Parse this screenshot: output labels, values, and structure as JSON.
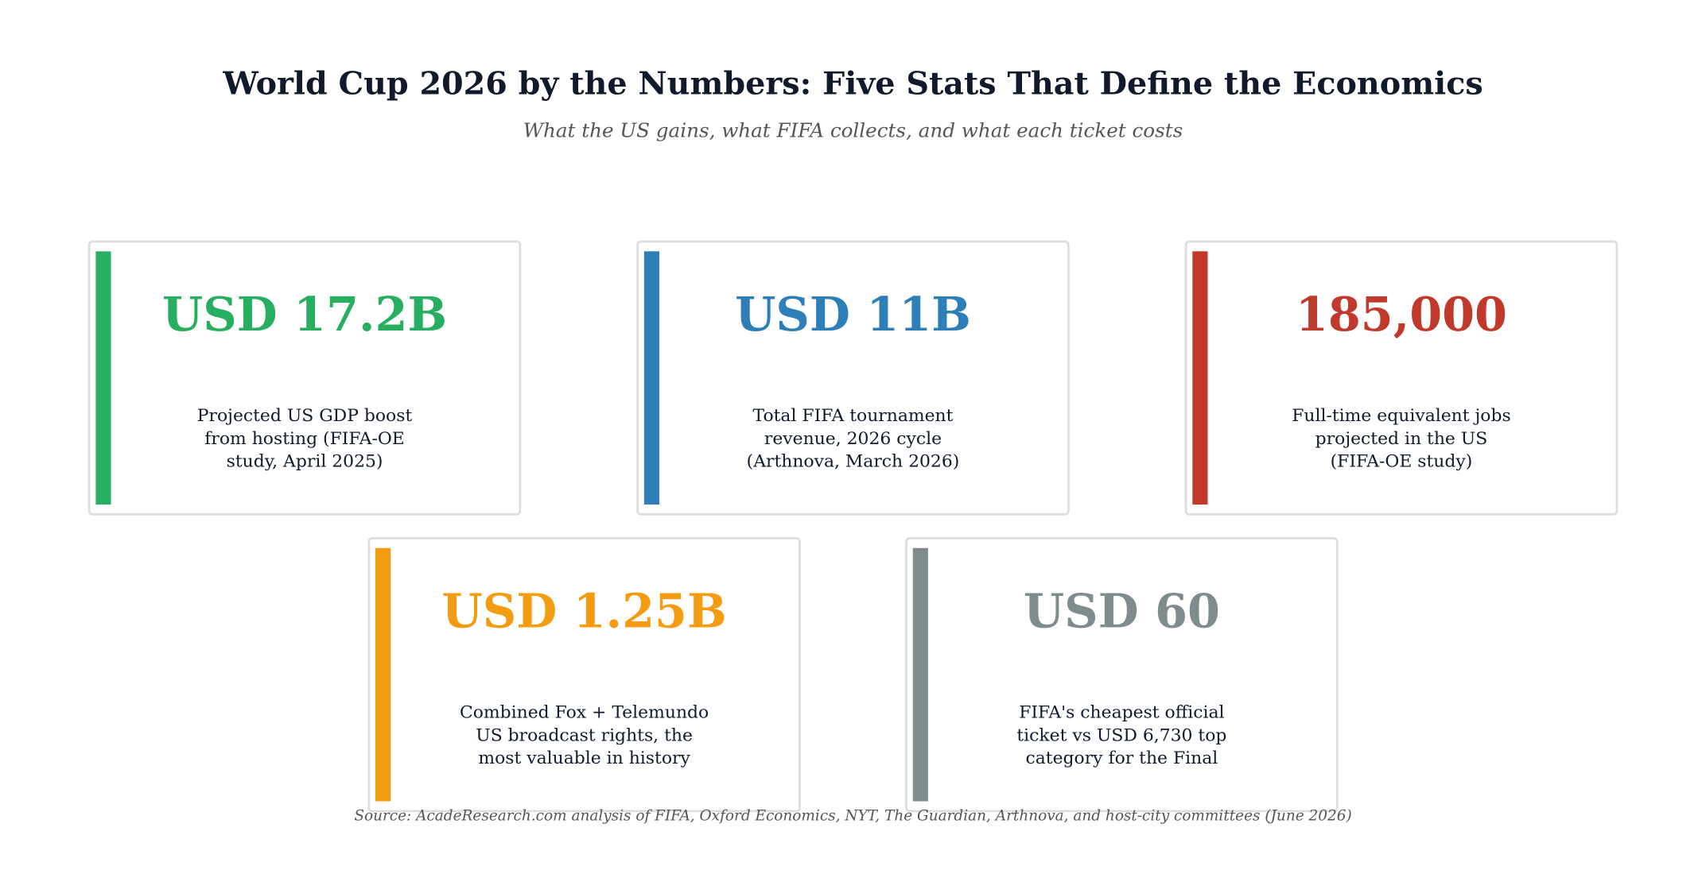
{
  "header": {
    "title": "World Cup 2026 by the Numbers: Five Stats That Define the Economics",
    "subtitle": "What the US gains, what FIFA collects, and what each ticket costs"
  },
  "cards": [
    {
      "value": "USD 17.2B",
      "color": "#27ae60",
      "description": [
        "Projected US GDP boost",
        "from hosting (FIFA-OE",
        "study, April 2025)"
      ]
    },
    {
      "value": "USD 11B",
      "color": "#2e7fb8",
      "description": [
        "Total FIFA tournament",
        "revenue, 2026 cycle",
        "(Arthnova, March 2026)"
      ]
    },
    {
      "value": "185,000",
      "color": "#c0392b",
      "description": [
        "Full-time equivalent jobs",
        "projected in the US",
        "(FIFA-OE study)"
      ]
    },
    {
      "value": "USD 1.25B",
      "color": "#f39c12",
      "description": [
        "Combined Fox + Telemundo",
        "US broadcast rights, the",
        "most valuable in history"
      ]
    },
    {
      "value": "USD 60",
      "color": "#7f8c8d",
      "description": [
        "FIFA's cheapest official",
        "ticket vs USD 6,730 top",
        "category for the Final"
      ]
    }
  ],
  "footer": {
    "source": "Source: AcadeResearch.com analysis of FIFA, Oxford Economics, NYT, The Guardian, Arthnova, and host-city committees (June 2026)"
  }
}
